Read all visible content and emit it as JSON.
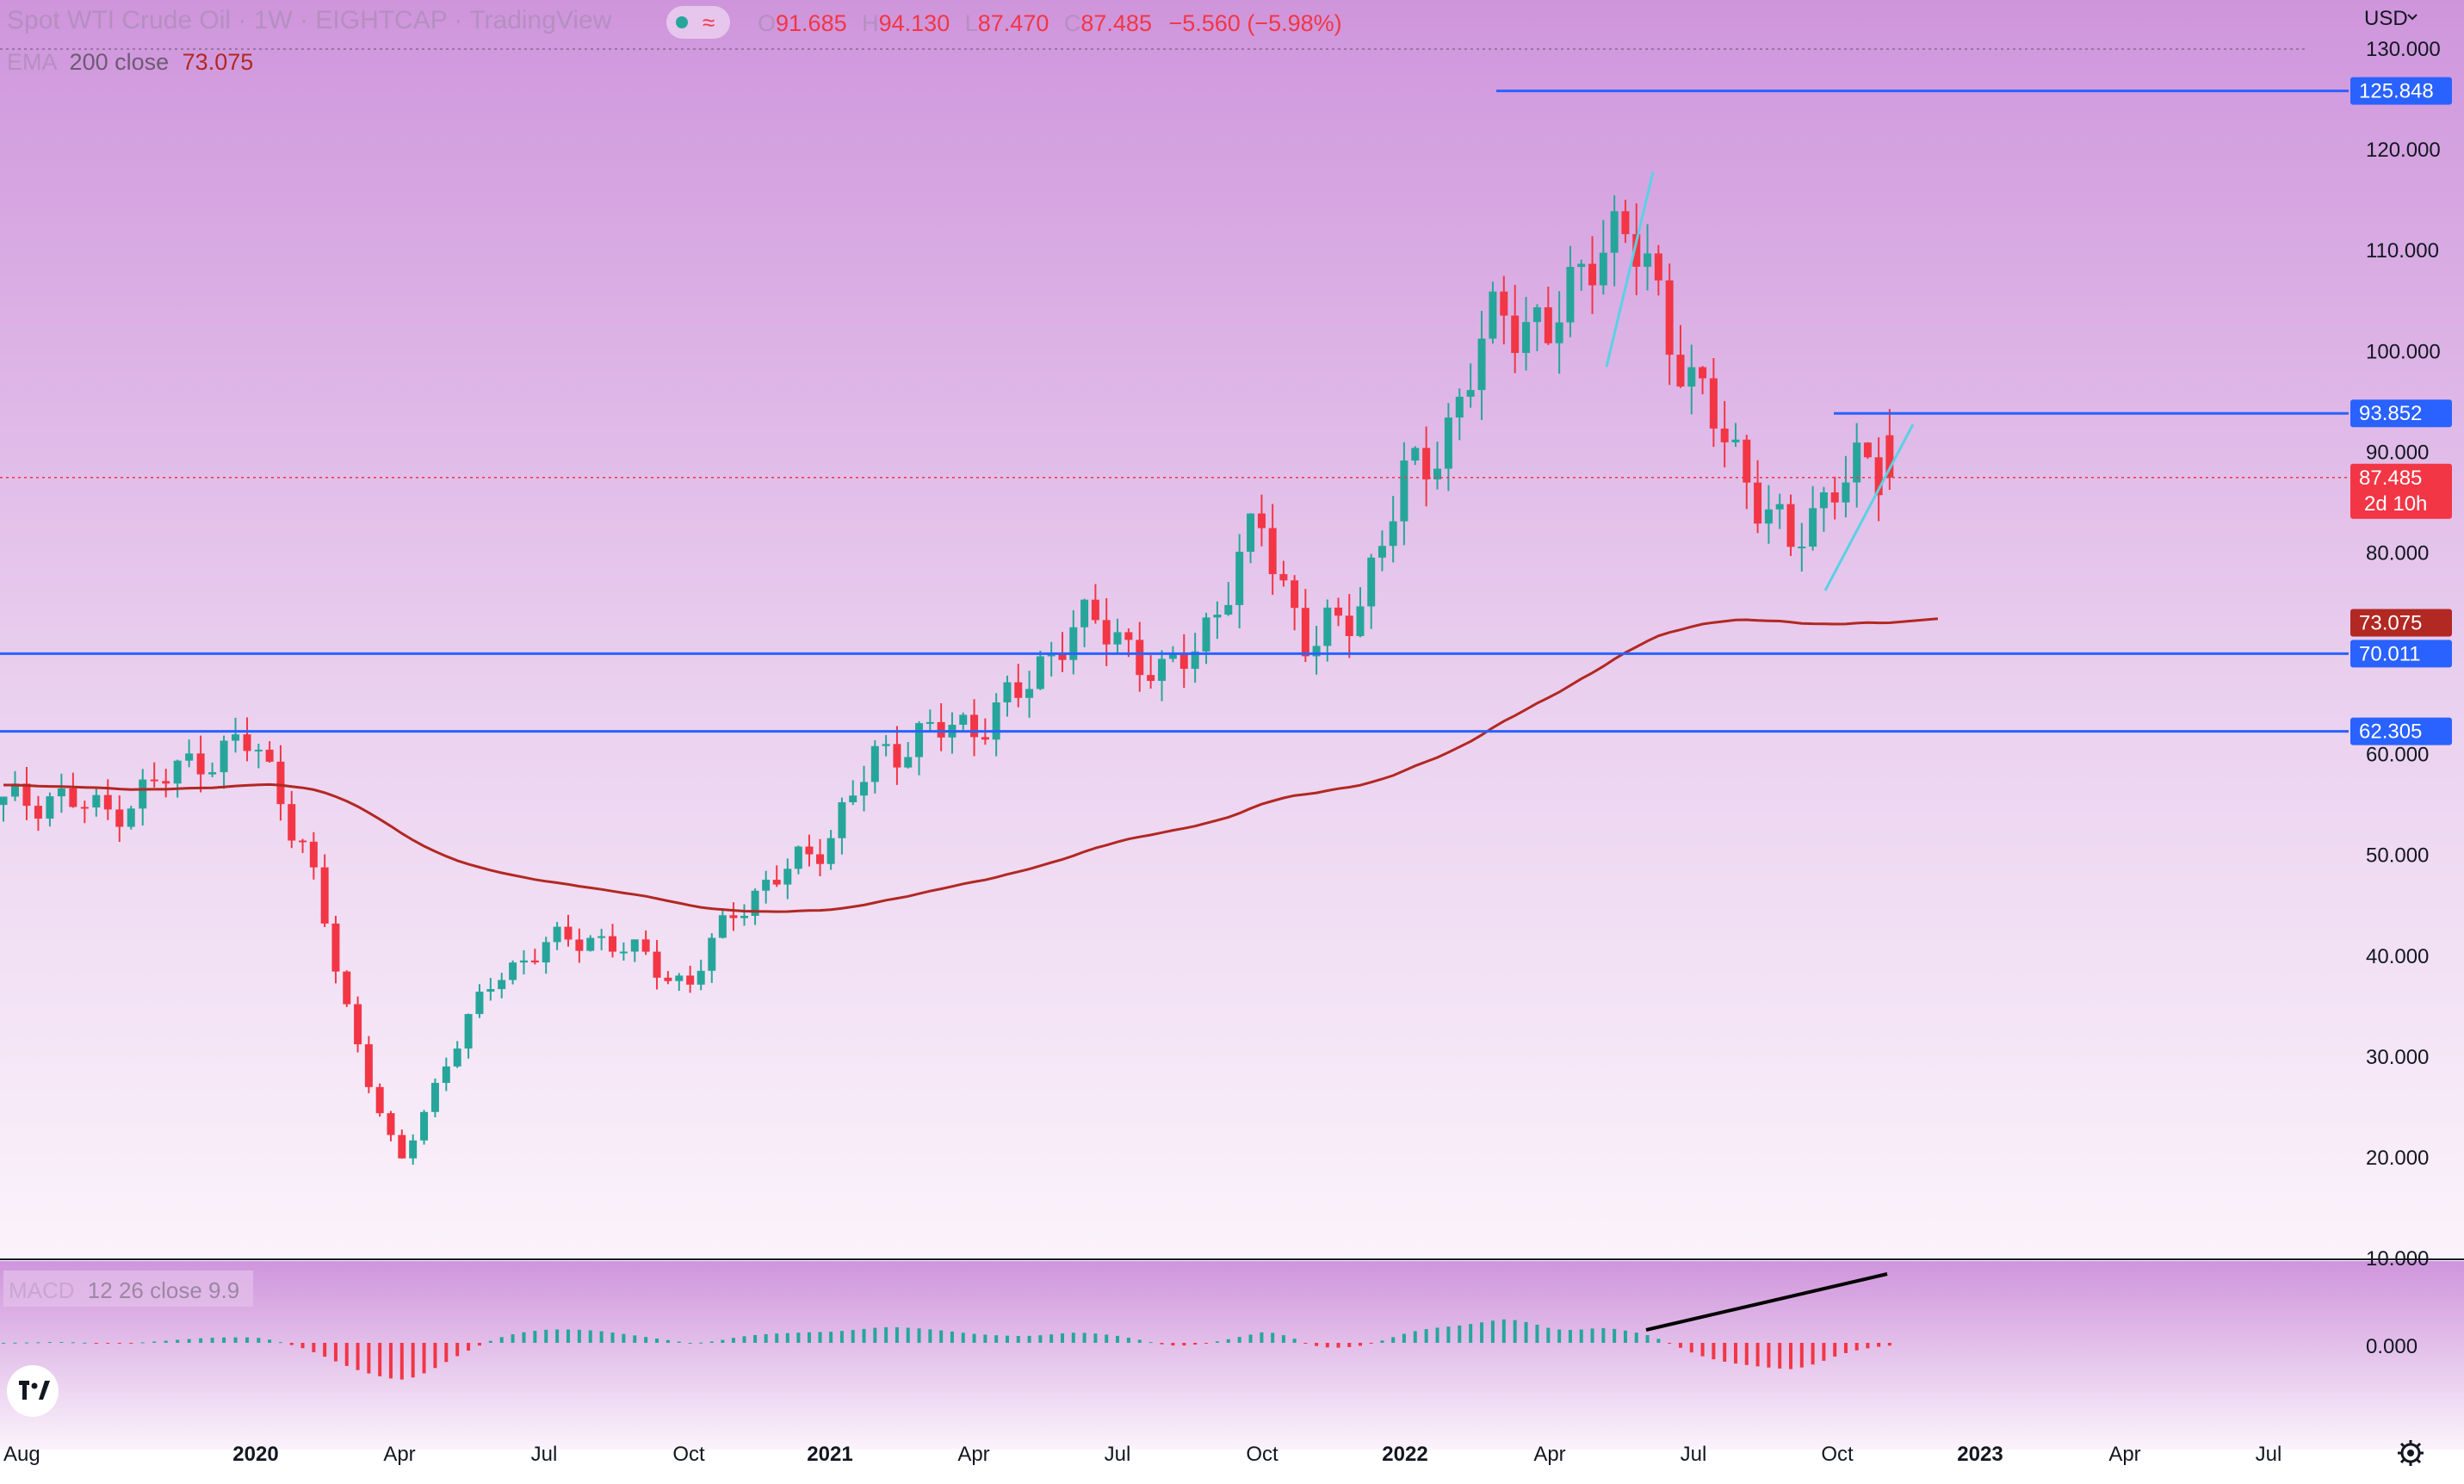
{
  "header": {
    "symbol_line": "Spot WTI Crude Oil · 1W · EIGHTCAP · TradingView",
    "o_label": "O",
    "o_value": "91.685",
    "h_label": "H",
    "h_value": "94.130",
    "l_label": "L",
    "l_value": "87.470",
    "c_label": "C",
    "c_value": "87.485",
    "change": "−5.560 (−5.98%)",
    "ema_label": "EMA",
    "ema_params": "200 close",
    "ema_value": "73.075",
    "macd_label": "MACD",
    "macd_params": "12 26 close 9.9",
    "currency": "USD"
  },
  "colors": {
    "up": "#26a69a",
    "down": "#f23645",
    "ema": "#b22822",
    "hline": "#2962ff",
    "trend": "#5ad1e4",
    "header_text": "#f23645"
  },
  "chart_data": {
    "type": "candlestick",
    "timeframe": "1W",
    "ylim": [
      10,
      130
    ],
    "y_ticks": [
      "10.000",
      "20.000",
      "30.000",
      "40.000",
      "50.000",
      "60.000",
      "80.000",
      "90.000",
      "100.000",
      "110.000",
      "120.000",
      "130.000"
    ],
    "y_tick_values": [
      10,
      20,
      30,
      40,
      50,
      60,
      80,
      90,
      100,
      110,
      120,
      130
    ],
    "x_ticks": [
      {
        "label": "Aug",
        "bold": false
      },
      {
        "label": "2020",
        "bold": true
      },
      {
        "label": "Apr",
        "bold": false
      },
      {
        "label": "Jul",
        "bold": false
      },
      {
        "label": "Oct",
        "bold": false
      },
      {
        "label": "2021",
        "bold": true
      },
      {
        "label": "Apr",
        "bold": false
      },
      {
        "label": "Jul",
        "bold": false
      },
      {
        "label": "Oct",
        "bold": false
      },
      {
        "label": "2022",
        "bold": true
      },
      {
        "label": "Apr",
        "bold": false
      },
      {
        "label": "Jul",
        "bold": false
      },
      {
        "label": "Oct",
        "bold": false
      },
      {
        "label": "2023",
        "bold": true
      },
      {
        "label": "Apr",
        "bold": false
      },
      {
        "label": "Jul",
        "bold": false
      }
    ],
    "x_tick_dates": [
      "2019-08",
      "2020-01",
      "2020-04",
      "2020-07",
      "2020-10",
      "2021-01",
      "2021-04",
      "2021-07",
      "2021-10",
      "2022-01",
      "2022-04",
      "2022-07",
      "2022-10",
      "2023-01",
      "2023-04",
      "2023-07"
    ],
    "price_anchors": [
      [
        "2019-08",
        55
      ],
      [
        "2019-09",
        56
      ],
      [
        "2019-10",
        54
      ],
      [
        "2019-11",
        57
      ],
      [
        "2019-12",
        60
      ],
      [
        "2020-01",
        61
      ],
      [
        "2020-02",
        51
      ],
      [
        "2020-03",
        33
      ],
      [
        "2020-04",
        19
      ],
      [
        "2020-05",
        30
      ],
      [
        "2020-06",
        38
      ],
      [
        "2020-07",
        41
      ],
      [
        "2020-08",
        42
      ],
      [
        "2020-09",
        40
      ],
      [
        "2020-10",
        37
      ],
      [
        "2020-11",
        45
      ],
      [
        "2020-12",
        48
      ],
      [
        "2021-01",
        52
      ],
      [
        "2021-02",
        60
      ],
      [
        "2021-03",
        62
      ],
      [
        "2021-04",
        63
      ],
      [
        "2021-05",
        66
      ],
      [
        "2021-06",
        73
      ],
      [
        "2021-07",
        72
      ],
      [
        "2021-08",
        67
      ],
      [
        "2021-09",
        74
      ],
      [
        "2021-10",
        83
      ],
      [
        "2021-11",
        70
      ],
      [
        "2021-12",
        75
      ],
      [
        "2022-01",
        87
      ],
      [
        "2022-02",
        93
      ],
      [
        "2022-03",
        105
      ],
      [
        "2022-04",
        101
      ],
      [
        "2022-05",
        112
      ],
      [
        "2022-06",
        109
      ],
      [
        "2022-07",
        96
      ],
      [
        "2022-08",
        89
      ],
      [
        "2022-09",
        80
      ],
      [
        "2022-10",
        88
      ],
      [
        "2022-11",
        87.485
      ]
    ],
    "last_candle": {
      "open": 91.685,
      "high": 94.13,
      "low": 87.47,
      "close": 87.485,
      "time_left": "2d 10h"
    },
    "ema200": {
      "name": "EMA 200 close",
      "last_value": 73.075
    },
    "horizontal_levels": [
      125.848,
      93.852,
      70.011,
      62.305
    ],
    "macd": {
      "params": "12 26 close 9.9",
      "zero_label": "0.000"
    }
  }
}
